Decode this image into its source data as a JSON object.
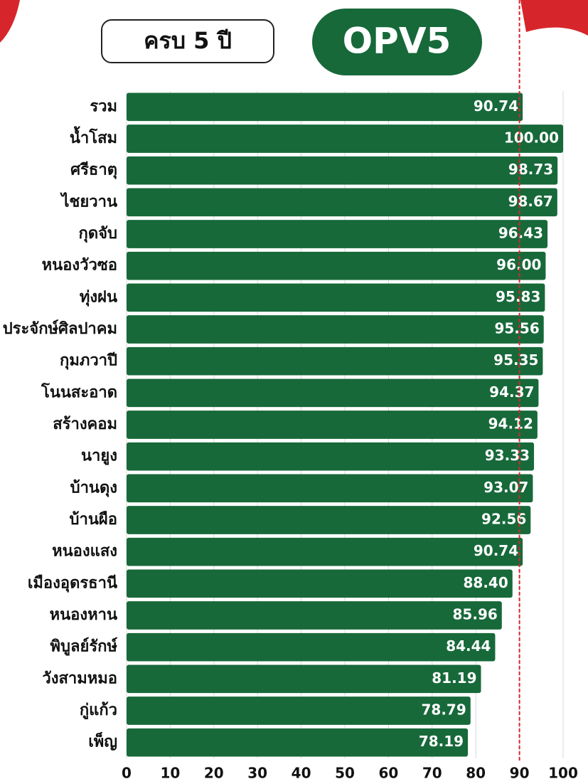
{
  "chart_data": {
    "type": "bar",
    "orientation": "horizontal",
    "subtitle": "ครบ 5 ปี",
    "title": "OPV5",
    "categories": [
      "รวม",
      "น้ำโสม",
      "ศรีธาตุ",
      "ไชยวาน",
      "กุดจับ",
      "หนองวัวซอ",
      "ทุ่งฝน",
      "ประจักษ์ศิลปาคม",
      "กุมภวาปี",
      "โนนสะอาด",
      "สร้างคอม",
      "นายูง",
      "บ้านดุง",
      "บ้านผือ",
      "หนองแสง",
      "เมืองอุดรธานี",
      "หนองหาน",
      "พิบูลย์รักษ์",
      "วังสามหมอ",
      "กู่แก้ว",
      "เพ็ญ"
    ],
    "values": [
      90.74,
      100,
      98.73,
      98.67,
      96.43,
      96,
      95.83,
      95.56,
      95.35,
      94.37,
      94.12,
      93.33,
      93.07,
      92.56,
      90.74,
      88.4,
      85.96,
      84.44,
      81.19,
      78.79,
      78.19
    ],
    "value_labels": [
      "90.74",
      "100.00",
      "98.73",
      "98.67",
      "96.43",
      "96.00",
      "95.83",
      "95.56",
      "95.35",
      "94.37",
      "94.12",
      "93.33",
      "93.07",
      "92.56",
      "90.74",
      "88.40",
      "85.96",
      "84.44",
      "81.19",
      "78.79",
      "78.19"
    ],
    "color": "#17693a",
    "xlim": [
      0,
      100
    ],
    "xticks": [
      0,
      10,
      20,
      30,
      40,
      50,
      60,
      70,
      80,
      90,
      100
    ],
    "grid": true,
    "reference_line": {
      "value": 90,
      "color": "#d6262b"
    }
  }
}
